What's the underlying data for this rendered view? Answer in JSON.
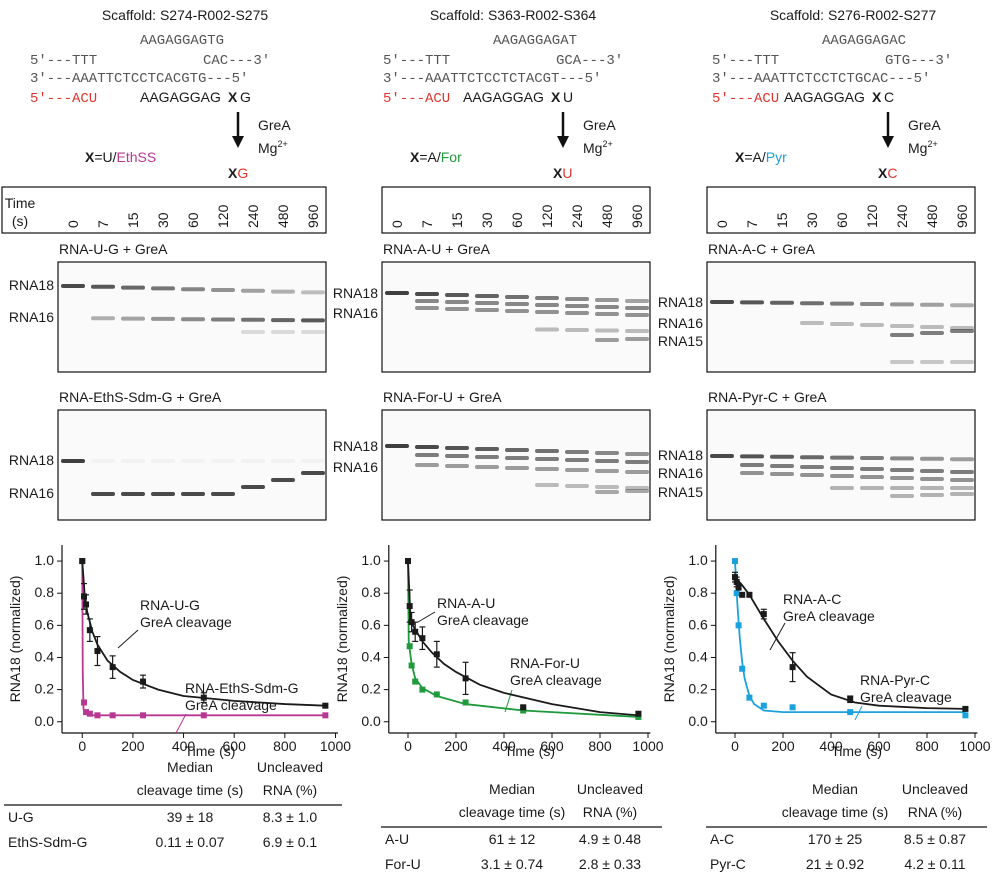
{
  "panels": [
    {
      "scaffold": "Scaffold: S274-R002-S275",
      "top_strand": "AAGAGGAGTG",
      "line_5": "5'---TTT",
      "line_5_end": "CAC---3'",
      "line_3": "3'---AAATTCTCCTCACGTG---5'",
      "rna_5": "5'---ACU",
      "rna_seq": "AAGAGGAG",
      "x_symbol": "X",
      "rna_end": "G",
      "x_def_prefix": "=U/",
      "x_def_mod": "EthSS",
      "mod_color": "#b83891",
      "enzyme": "GreA",
      "cofactor": "Mg",
      "cofactor_charge": "2+",
      "product_x": "X",
      "product_end": "G",
      "time_label": [
        "Time",
        "(s)"
      ],
      "lanes": [
        0,
        7,
        15,
        30,
        60,
        120,
        240,
        480,
        960
      ],
      "gels": [
        {
          "title": "RNA-U-G + GreA",
          "color": "#1a1a1a",
          "bands": [
            "RNA18",
            "RNA16"
          ]
        },
        {
          "title": "RNA-EthS-Sdm-G + GreA",
          "color": "#b83891",
          "bands": [
            "RNA18",
            "RNA16"
          ]
        }
      ],
      "table": {
        "header": [
          [
            "Median",
            "cleavage time (s)"
          ],
          [
            "Uncleaved",
            "RNA (%)"
          ]
        ],
        "rows": [
          [
            "U-G",
            "39 ± 18",
            "8.3 ± 1.0"
          ],
          [
            "EthS-Sdm-G",
            "0.11 ± 0.07",
            "6.9 ± 0.1"
          ]
        ],
        "label_colors": [
          "#1a1a1a",
          "#b83891"
        ]
      }
    },
    {
      "scaffold": "Scaffold: S363-R002-S364",
      "top_strand": "AAGAGGAGAT",
      "line_5": "5'---TTT",
      "line_5_end": "GCA---3'",
      "line_3": "3'---AAATTCTCCTCTACGT---5'",
      "rna_5": "5'---ACU",
      "rna_seq": "AAGAGGAG",
      "x_symbol": "X",
      "rna_end": "U",
      "x_def_prefix": "=A/",
      "x_def_mod": "For",
      "mod_color": "#1f9a3c",
      "enzyme": "GreA",
      "cofactor": "Mg",
      "cofactor_charge": "2+",
      "product_x": "X",
      "product_end": "U",
      "lanes": [
        0,
        7,
        15,
        30,
        60,
        120,
        240,
        480,
        960
      ],
      "gels": [
        {
          "title": "RNA-A-U + GreA",
          "color": "#1a1a1a",
          "bands": [
            "RNA18",
            "RNA16"
          ]
        },
        {
          "title": "RNA-For-U + GreA",
          "color": "#1f9a3c",
          "bands": [
            "RNA18",
            "RNA16"
          ]
        }
      ],
      "table": {
        "header": [
          [
            "Median",
            "cleavage time (s)"
          ],
          [
            "Uncleaved",
            "RNA (%)"
          ]
        ],
        "rows": [
          [
            "A-U",
            "61 ± 12",
            "4.9 ± 0.48"
          ],
          [
            "For-U",
            "3.1 ± 0.74",
            "2.8 ± 0.33"
          ]
        ],
        "label_colors": [
          "#1a1a1a",
          "#1f9a3c"
        ]
      }
    },
    {
      "scaffold": "Scaffold: S276-R002-S277",
      "top_strand": "AAGAGGAGAC",
      "line_5": "5'---TTT",
      "line_5_end": "GTG---3'",
      "line_3": "3'---AAATTCTCCTCTGCAC---5'",
      "rna_5": "5'---ACU",
      "rna_seq": "AAGAGGAG",
      "x_symbol": "X",
      "rna_end": "C",
      "x_def_prefix": "=A/",
      "x_def_mod": "Pyr",
      "mod_color": "#1ba1db",
      "enzyme": "GreA",
      "cofactor": "Mg",
      "cofactor_charge": "2+",
      "product_x": "X",
      "product_end": "C",
      "lanes": [
        0,
        7,
        15,
        30,
        60,
        120,
        240,
        480,
        960
      ],
      "gels": [
        {
          "title": "RNA-A-C + GreA",
          "color": "#1a1a1a",
          "bands": [
            "RNA18",
            "RNA16",
            "RNA15"
          ]
        },
        {
          "title": "RNA-Pyr-C + GreA",
          "color": "#1ba1db",
          "bands": [
            "RNA18",
            "RNA16",
            "RNA15"
          ]
        }
      ],
      "table": {
        "header": [
          [
            "Median",
            "cleavage time (s)"
          ],
          [
            "Uncleaved",
            "RNA (%)"
          ]
        ],
        "rows": [
          [
            "A-C",
            "170 ± 25",
            "8.5 ± 0.87"
          ],
          [
            "Pyr-C",
            "21 ± 0.92",
            "4.2 ± 0.11"
          ]
        ],
        "label_colors": [
          "#1a1a1a",
          "#1ba1db"
        ]
      }
    }
  ],
  "chart_data": [
    {
      "type": "scatter",
      "xlabel": "Time (s)",
      "ylabel": "RNA18 (normalized)",
      "x": [
        0,
        7,
        15,
        30,
        60,
        120,
        240,
        480,
        960
      ],
      "xlim": [
        -80,
        1010
      ],
      "xticks": [
        0,
        200,
        400,
        600,
        800,
        1000
      ],
      "ylim": [
        -0.07,
        1.1
      ],
      "yticks": [
        {
          "value": 0,
          "label": "0.0"
        },
        0.2,
        0.4,
        0.6,
        0.8,
        {
          "value": 1,
          "label": "1.0"
        }
      ],
      "series": [
        {
          "color": "#1a1a1a",
          "values": [
            1.0,
            0.78,
            0.73,
            0.57,
            0.44,
            0.34,
            0.25,
            0.15,
            0.1
          ],
          "errors": [
            null,
            0.08,
            0.06,
            0.07,
            0.09,
            0.07,
            0.04,
            0.03,
            0.01
          ],
          "fit": {
            "x": [
              0,
              10,
              20,
              40,
              60,
              100,
              150,
              200,
              300,
              400,
              600,
              800,
              960
            ],
            "values": [
              1.0,
              0.78,
              0.68,
              0.56,
              0.48,
              0.38,
              0.31,
              0.26,
              0.2,
              0.16,
              0.13,
              0.11,
              0.1
            ]
          },
          "annotation": [
            "RNA-U-G",
            "GreA cleavage"
          ]
        },
        {
          "color": "#b83891",
          "values": [
            1.0,
            0.12,
            0.06,
            0.05,
            0.04,
            0.04,
            0.04,
            0.04,
            0.04
          ],
          "fit": {
            "x": [
              0,
              2,
              5,
              10,
              20,
              40,
              960
            ],
            "values": [
              1.0,
              0.3,
              0.08,
              0.05,
              0.045,
              0.04,
              0.04
            ]
          },
          "annotation": [
            "RNA-EthS-Sdm-G",
            "GreA cleavage"
          ]
        }
      ]
    },
    {
      "type": "scatter",
      "xlabel": "Time (s)",
      "ylabel": "RNA18 (normalized)",
      "x": [
        0,
        7,
        15,
        30,
        60,
        120,
        240,
        480,
        960
      ],
      "xlim": [
        -80,
        1010
      ],
      "xticks": [
        0,
        200,
        400,
        600,
        800,
        1000
      ],
      "ylim": [
        -0.07,
        1.1
      ],
      "yticks": [
        {
          "value": 0,
          "label": "0.0"
        },
        0.2,
        0.4,
        0.6,
        0.8,
        {
          "value": 1,
          "label": "1.0"
        }
      ],
      "series": [
        {
          "color": "#1a1a1a",
          "values": [
            1.0,
            0.72,
            0.62,
            0.56,
            0.52,
            0.42,
            0.27,
            0.09,
            0.05
          ],
          "errors": [
            null,
            0.1,
            0.06,
            0.06,
            0.07,
            0.08,
            0.1,
            0.01,
            0.01
          ],
          "fit": {
            "x": [
              0,
              10,
              20,
              40,
              60,
              100,
              150,
              200,
              300,
              400,
              600,
              800,
              960
            ],
            "values": [
              1.0,
              0.65,
              0.6,
              0.55,
              0.5,
              0.43,
              0.36,
              0.31,
              0.23,
              0.18,
              0.11,
              0.06,
              0.04
            ]
          },
          "annotation": [
            "RNA-A-U",
            "GreA cleavage"
          ]
        },
        {
          "color": "#1f9a3c",
          "values": [
            1.0,
            0.47,
            0.35,
            0.25,
            0.2,
            0.17,
            0.12,
            0.07,
            0.03
          ],
          "fit": {
            "x": [
              0,
              3,
              7,
              15,
              30,
              60,
              120,
              240,
              480,
              960
            ],
            "values": [
              1.0,
              0.5,
              0.45,
              0.36,
              0.27,
              0.21,
              0.16,
              0.11,
              0.07,
              0.03
            ]
          },
          "annotation": [
            "RNA-For-U",
            "GreA cleavage"
          ]
        }
      ]
    },
    {
      "type": "scatter",
      "xlabel": "Time (s)",
      "ylabel": "RNA18 (normalized)",
      "x": [
        0,
        7,
        15,
        30,
        60,
        120,
        240,
        480,
        960
      ],
      "xlim": [
        -80,
        1010
      ],
      "xticks": [
        0,
        200,
        400,
        600,
        800,
        1000
      ],
      "ylim": [
        -0.07,
        1.1
      ],
      "yticks": [
        {
          "value": 0,
          "label": "0.0"
        },
        0.2,
        0.4,
        0.6,
        0.8,
        {
          "value": 1,
          "label": "1.0"
        }
      ],
      "series": [
        {
          "color": "#1a1a1a",
          "values": [
            0.9,
            0.87,
            0.84,
            0.79,
            0.79,
            0.67,
            0.34,
            0.14,
            0.08
          ],
          "errors": [
            0.03,
            0.03,
            0.02,
            null,
            0.01,
            0.03,
            0.09,
            0.02,
            0.01
          ],
          "fit": {
            "x": [
              0,
              30,
              60,
              120,
              180,
              240,
              300,
              400,
              500,
              600,
              800,
              960
            ],
            "values": [
              0.9,
              0.85,
              0.79,
              0.64,
              0.5,
              0.38,
              0.28,
              0.17,
              0.12,
              0.1,
              0.085,
              0.08
            ]
          },
          "annotation": [
            "RNA-A-C",
            "GreA cleavage"
          ]
        },
        {
          "color": "#1ba1db",
          "values": [
            1.0,
            0.8,
            0.6,
            0.33,
            0.15,
            0.1,
            0.09,
            0.06,
            0.04
          ],
          "fit": {
            "x": [
              0,
              10,
              20,
              30,
              40,
              60,
              80,
              120,
              200,
              400,
              960
            ],
            "values": [
              1.0,
              0.73,
              0.52,
              0.37,
              0.27,
              0.16,
              0.11,
              0.07,
              0.06,
              0.06,
              0.06
            ]
          },
          "annotation": [
            "RNA-Pyr-C",
            "GreA cleavage"
          ]
        }
      ]
    }
  ]
}
